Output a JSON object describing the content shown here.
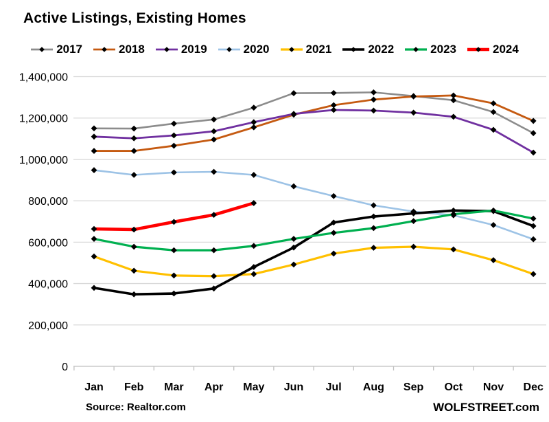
{
  "chart_data": {
    "type": "line",
    "title": "Active Listings, Existing Homes",
    "xlabel": "",
    "ylabel": "",
    "categories": [
      "Jan",
      "Feb",
      "Mar",
      "Apr",
      "May",
      "Jun",
      "Jul",
      "Aug",
      "Sep",
      "Oct",
      "Nov",
      "Dec"
    ],
    "series": [
      {
        "name": "2017",
        "color": "#8C8C8C",
        "width": 2.6,
        "values": [
          1150000,
          1149000,
          1173000,
          1193000,
          1250000,
          1320000,
          1321000,
          1324000,
          1306000,
          1286000,
          1229000,
          1127000
        ]
      },
      {
        "name": "2018",
        "color": "#C55A11",
        "width": 2.8,
        "values": [
          1041000,
          1041000,
          1066000,
          1096000,
          1155000,
          1216000,
          1262000,
          1289000,
          1304000,
          1309000,
          1271000,
          1186000
        ]
      },
      {
        "name": "2019",
        "color": "#7030A0",
        "width": 2.8,
        "values": [
          1110000,
          1102000,
          1116000,
          1136000,
          1180000,
          1220000,
          1239000,
          1236000,
          1226000,
          1206000,
          1143000,
          1033000
        ]
      },
      {
        "name": "2020",
        "color": "#9DC3E6",
        "width": 2.6,
        "values": [
          948000,
          925000,
          937000,
          940000,
          925000,
          870000,
          823000,
          778000,
          748000,
          730000,
          683000,
          614000
        ]
      },
      {
        "name": "2021",
        "color": "#FFC000",
        "width": 3.2,
        "values": [
          531000,
          462000,
          439000,
          436000,
          446000,
          492000,
          545000,
          573000,
          578000,
          565000,
          513000,
          446000
        ]
      },
      {
        "name": "2022",
        "color": "#000000",
        "width": 3.6,
        "values": [
          379000,
          348000,
          352000,
          376000,
          480000,
          574000,
          695000,
          724000,
          739000,
          753000,
          750000,
          678000
        ]
      },
      {
        "name": "2023",
        "color": "#00B050",
        "width": 3.2,
        "values": [
          616000,
          578000,
          561000,
          561000,
          582000,
          616000,
          645000,
          668000,
          702000,
          735000,
          753000,
          714000
        ]
      },
      {
        "name": "2024",
        "color": "#FF0000",
        "width": 4.6,
        "values": [
          664000,
          661000,
          698000,
          732000,
          789000
        ]
      }
    ],
    "ylim": [
      0,
      1400000
    ],
    "ytick_values": [
      0,
      200000,
      400000,
      600000,
      800000,
      1000000,
      1200000,
      1400000
    ],
    "ytick_labels": [
      "0",
      "200,000",
      "400,000",
      "600,000",
      "800,000",
      "1,000,000",
      "1,200,000",
      "1,400,000"
    ],
    "grid": "horizontal",
    "legend_position": "top",
    "marker": "diamond",
    "marker_color": "#000000",
    "gridline_color": "#D9D9D9",
    "axis_color": "#BFBFBF",
    "source": "Source: Realtor.com",
    "branding": "WOLFSTREET.com"
  }
}
